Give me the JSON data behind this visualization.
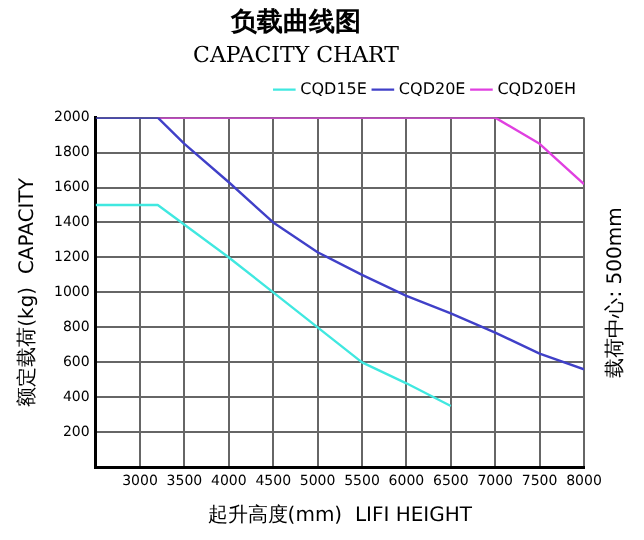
{
  "chart_data": {
    "type": "line",
    "title": "负载曲线图",
    "subtitle": "CAPACITY CHART",
    "xlabel": "起升高度(mm)  LIFI HEIGHT",
    "ylabel": "额定载荷(kg)  CAPACITY",
    "annotations": [
      "载荷中心: 500mm"
    ],
    "series": [
      {
        "name": "CQD15E",
        "color": "#40e8e0",
        "x": [
          2500,
          3200,
          4000,
          4500,
          5000,
          5500,
          6000,
          6500
        ],
        "values": [
          1500,
          1500,
          1200,
          1000,
          800,
          600,
          480,
          350
        ]
      },
      {
        "name": "CQD20E",
        "color": "#4040c8",
        "x": [
          2500,
          3200,
          3500,
          4000,
          4500,
          5000,
          5500,
          6000,
          6500,
          7000,
          7500,
          8000
        ],
        "values": [
          2000,
          2000,
          1850,
          1630,
          1400,
          1230,
          1100,
          980,
          880,
          770,
          650,
          560
        ]
      },
      {
        "name": "CQD20EH",
        "color": "#e040e0",
        "x": [
          3200,
          7000,
          7500,
          8000
        ],
        "values": [
          2000,
          2000,
          1850,
          1620
        ]
      }
    ],
    "xlim": [
      2500,
      8000
    ],
    "xticks": [
      3000,
      3500,
      4000,
      4500,
      5000,
      5500,
      6000,
      6500,
      7000,
      7500,
      8000
    ],
    "ylim": [
      0,
      2000
    ],
    "yticks": [
      200,
      400,
      600,
      800,
      1000,
      1200,
      1400,
      1600,
      1800,
      2000
    ],
    "grid": true,
    "legend": "top right",
    "marker": "none",
    "line_style": "solid"
  }
}
